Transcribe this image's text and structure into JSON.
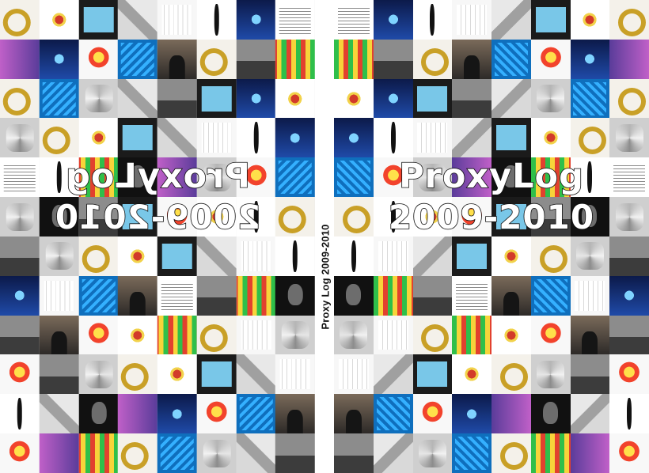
{
  "cover": {
    "title_line1": "ProxyLog",
    "title_line2": "2009-2010",
    "spine_text": "Proxy Log 2009-2010"
  },
  "colors": {
    "spine_background": "#ffffff",
    "title_fill": "#ffffff",
    "title_outline": "#111111"
  }
}
